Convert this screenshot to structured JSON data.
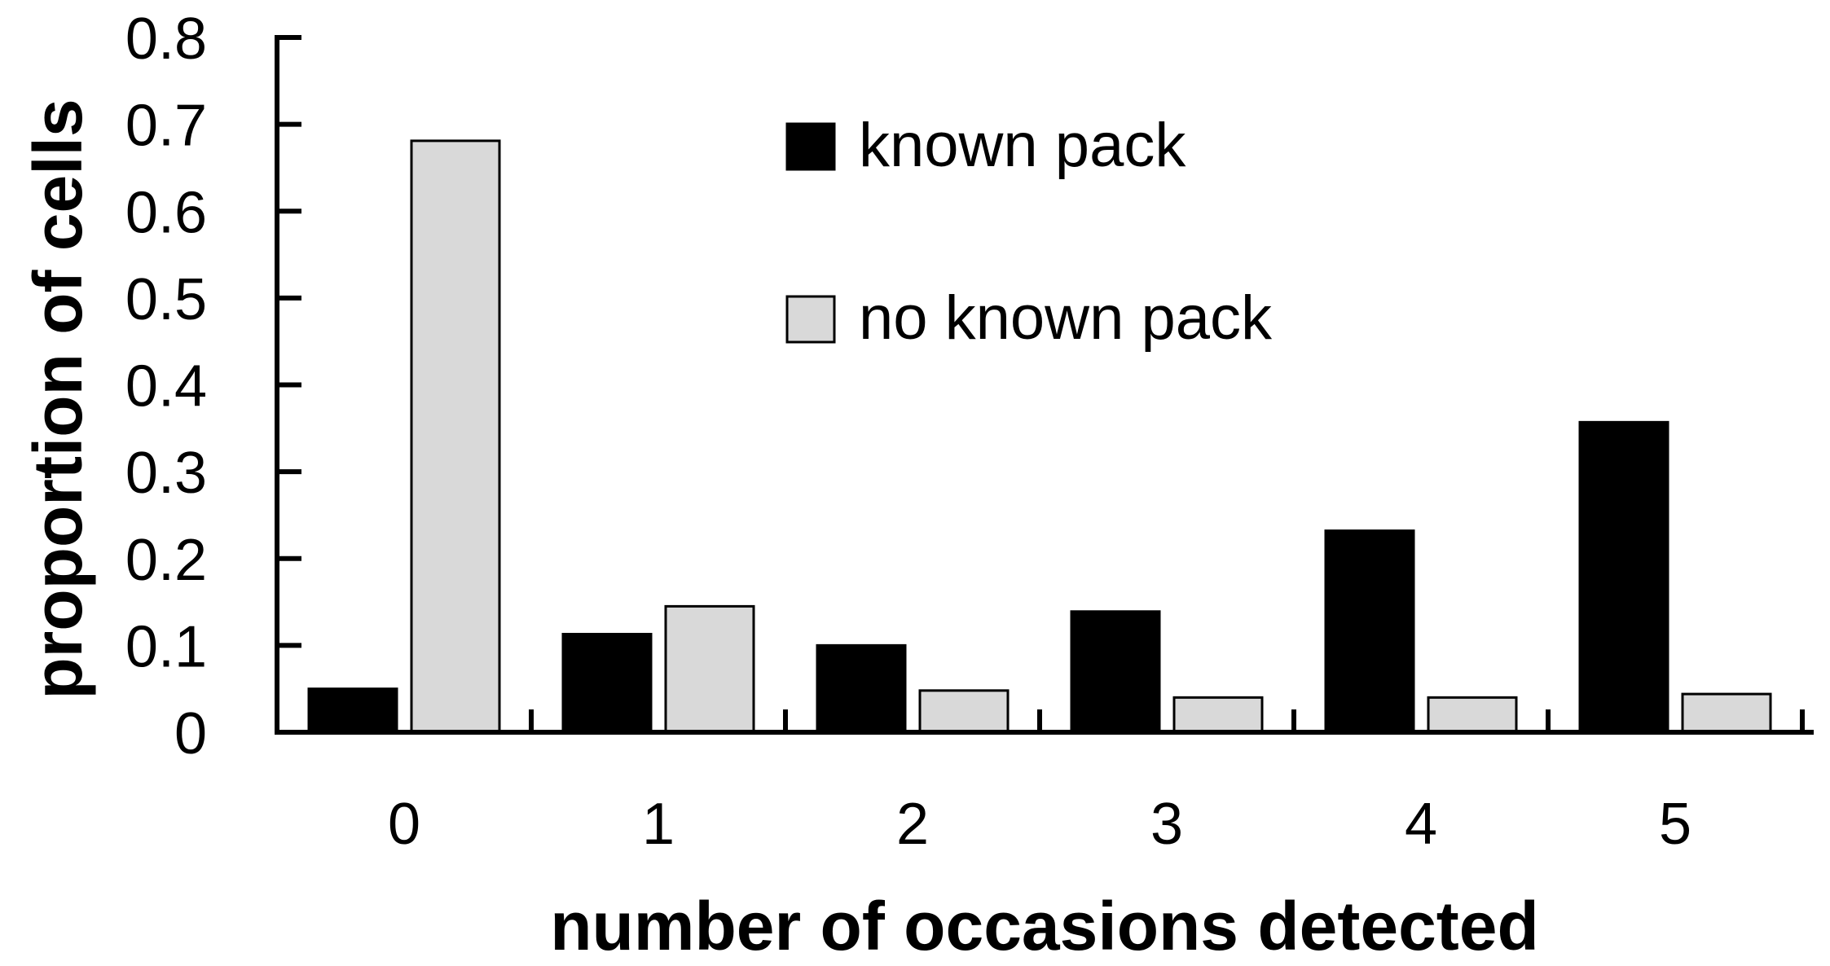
{
  "chart_data": {
    "type": "bar",
    "title": "",
    "xlabel": "number of occasions detected",
    "ylabel": "proportion of cells",
    "categories": [
      "0",
      "1",
      "2",
      "3",
      "4",
      "5"
    ],
    "series": [
      {
        "name": "known pack",
        "color": "#000000",
        "values": [
          0.05,
          0.113,
          0.1,
          0.139,
          0.232,
          0.357
        ]
      },
      {
        "name": "no known pack",
        "color": "#d9d9d9",
        "values": [
          0.681,
          0.145,
          0.048,
          0.04,
          0.04,
          0.044
        ]
      }
    ],
    "ylim": [
      0,
      0.8
    ],
    "yticks": [
      "0",
      "0.1",
      "0.2",
      "0.3",
      "0.4",
      "0.5",
      "0.6",
      "0.7",
      "0.8"
    ],
    "grid": false,
    "legend_position": "top-right"
  }
}
